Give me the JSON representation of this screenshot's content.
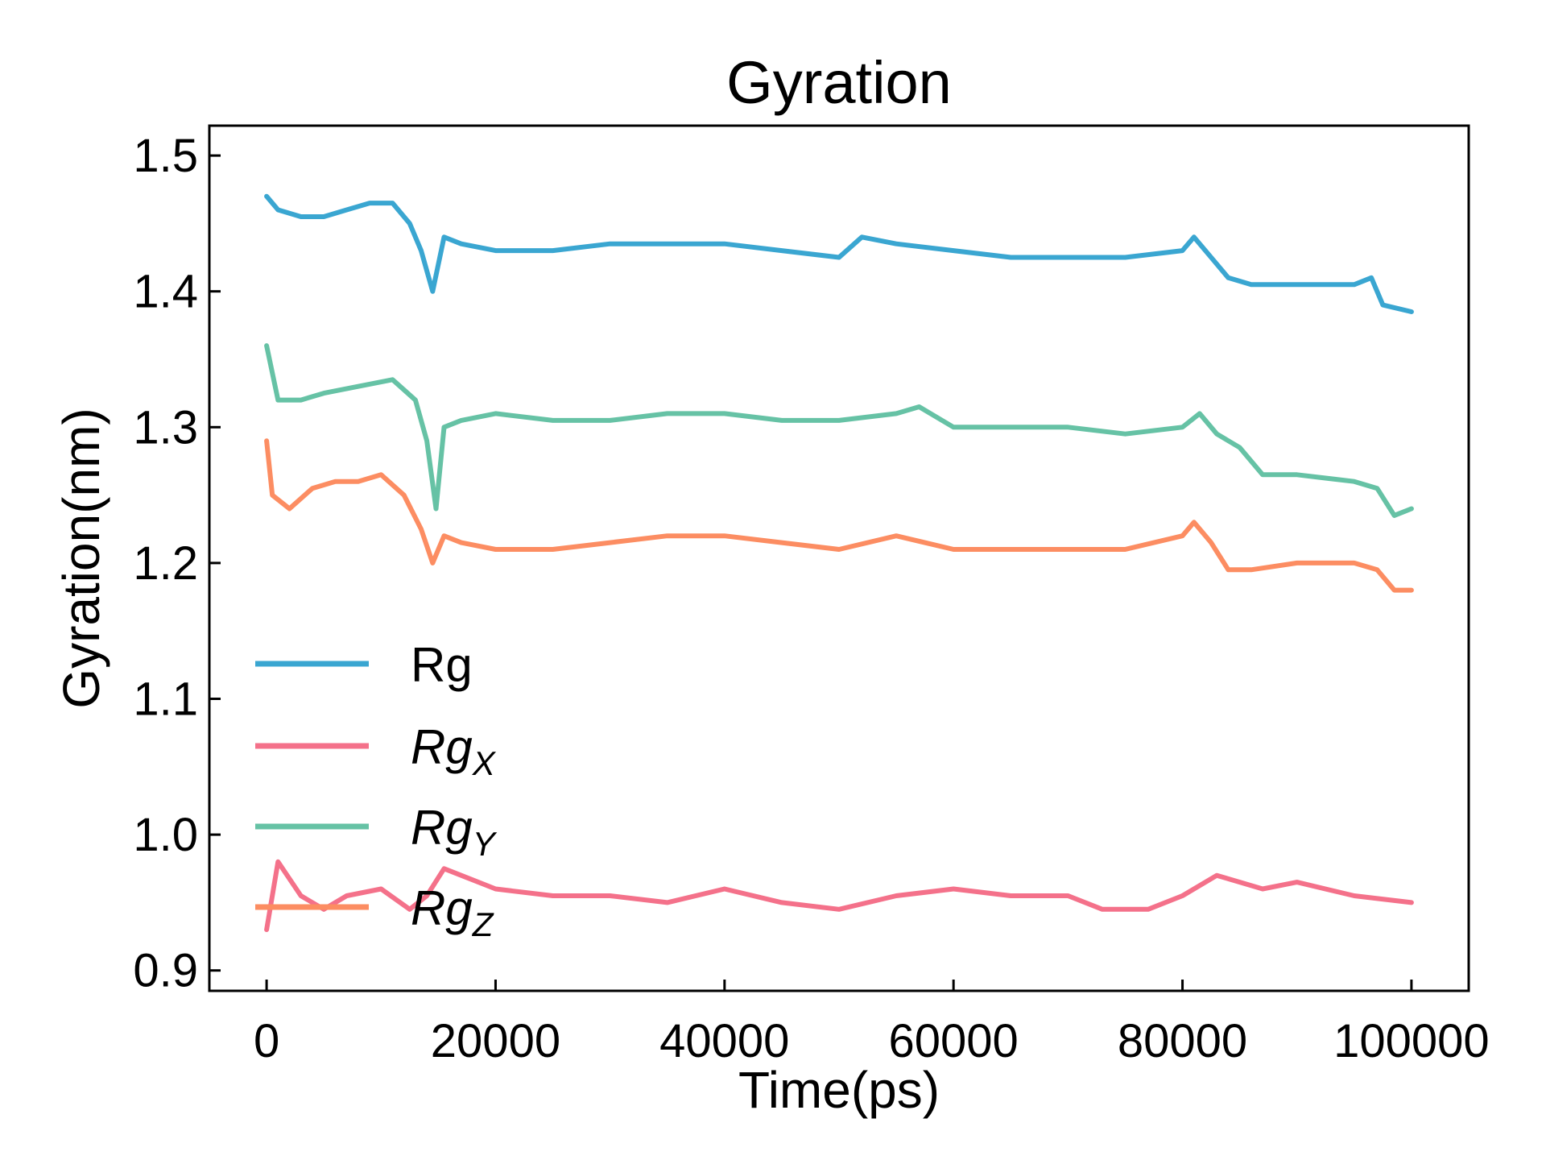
{
  "chart_data": {
    "type": "line",
    "title": "Gyration",
    "xlabel": "Time(ps)",
    "ylabel": "Gyration(nm)",
    "xlim": [
      -5000,
      105000
    ],
    "ylim": [
      0.885,
      1.522
    ],
    "xticks": [
      0,
      20000,
      40000,
      60000,
      80000,
      100000
    ],
    "xtick_labels": [
      "0",
      "20000",
      "40000",
      "60000",
      "80000",
      "100000"
    ],
    "yticks": [
      0.9,
      1.0,
      1.1,
      1.2,
      1.3,
      1.4,
      1.5
    ],
    "ytick_labels": [
      "0.9",
      "1.0",
      "1.1",
      "1.2",
      "1.3",
      "1.4",
      "1.5"
    ],
    "grid": false,
    "legend_position": "lower-left",
    "series": [
      {
        "name": "Rg",
        "legend_main": "Rg",
        "legend_sub": "",
        "color": "#3aa6d1",
        "x": [
          0,
          1000,
          3000,
          5000,
          7000,
          9000,
          11000,
          12500,
          13500,
          14500,
          15500,
          17000,
          20000,
          25000,
          30000,
          35000,
          40000,
          45000,
          50000,
          52000,
          55000,
          60000,
          65000,
          70000,
          75000,
          80000,
          81000,
          82500,
          84000,
          86000,
          90000,
          95000,
          96500,
          97500,
          100000
        ],
        "y": [
          1.47,
          1.46,
          1.455,
          1.455,
          1.46,
          1.465,
          1.465,
          1.45,
          1.43,
          1.4,
          1.44,
          1.435,
          1.43,
          1.43,
          1.435,
          1.435,
          1.435,
          1.43,
          1.425,
          1.44,
          1.435,
          1.43,
          1.425,
          1.425,
          1.425,
          1.43,
          1.44,
          1.425,
          1.41,
          1.405,
          1.405,
          1.405,
          1.41,
          1.39,
          1.385
        ]
      },
      {
        "name": "Rgx",
        "legend_main": "Rg",
        "legend_sub": "X",
        "color": "#f4718a",
        "x": [
          0,
          1000,
          3000,
          5000,
          7000,
          10000,
          12500,
          14000,
          15500,
          17000,
          20000,
          25000,
          30000,
          35000,
          40000,
          45000,
          50000,
          55000,
          60000,
          65000,
          70000,
          73000,
          77000,
          80000,
          83000,
          87000,
          90000,
          95000,
          100000
        ],
        "y": [
          0.93,
          0.98,
          0.955,
          0.945,
          0.955,
          0.96,
          0.945,
          0.955,
          0.975,
          0.97,
          0.96,
          0.955,
          0.955,
          0.95,
          0.96,
          0.95,
          0.945,
          0.955,
          0.96,
          0.955,
          0.955,
          0.945,
          0.945,
          0.955,
          0.97,
          0.96,
          0.965,
          0.955,
          0.95
        ]
      },
      {
        "name": "Rgy",
        "legend_main": "Rg",
        "legend_sub": "Y",
        "color": "#66c2a5",
        "x": [
          0,
          1000,
          3000,
          5000,
          8000,
          11000,
          13000,
          14000,
          14800,
          15500,
          17000,
          20000,
          25000,
          30000,
          35000,
          40000,
          45000,
          50000,
          55000,
          57000,
          60000,
          65000,
          70000,
          75000,
          80000,
          81500,
          83000,
          85000,
          87000,
          90000,
          95000,
          97000,
          98500,
          100000
        ],
        "y": [
          1.36,
          1.32,
          1.32,
          1.325,
          1.33,
          1.335,
          1.32,
          1.29,
          1.24,
          1.3,
          1.305,
          1.31,
          1.305,
          1.305,
          1.31,
          1.31,
          1.305,
          1.305,
          1.31,
          1.315,
          1.3,
          1.3,
          1.3,
          1.295,
          1.3,
          1.31,
          1.295,
          1.285,
          1.265,
          1.265,
          1.26,
          1.255,
          1.235,
          1.24
        ]
      },
      {
        "name": "Rgz",
        "legend_main": "Rg",
        "legend_sub": "Z",
        "color": "#fc8d62",
        "x": [
          0,
          500,
          2000,
          4000,
          6000,
          8000,
          10000,
          12000,
          13500,
          14500,
          15500,
          17000,
          20000,
          25000,
          30000,
          35000,
          40000,
          45000,
          50000,
          55000,
          60000,
          65000,
          70000,
          75000,
          80000,
          81000,
          82500,
          84000,
          86000,
          90000,
          95000,
          97000,
          98500,
          100000
        ],
        "y": [
          1.29,
          1.25,
          1.24,
          1.255,
          1.26,
          1.26,
          1.265,
          1.25,
          1.225,
          1.2,
          1.22,
          1.215,
          1.21,
          1.21,
          1.215,
          1.22,
          1.22,
          1.215,
          1.21,
          1.22,
          1.21,
          1.21,
          1.21,
          1.21,
          1.22,
          1.23,
          1.215,
          1.195,
          1.195,
          1.2,
          1.2,
          1.195,
          1.18,
          1.18
        ]
      }
    ]
  }
}
